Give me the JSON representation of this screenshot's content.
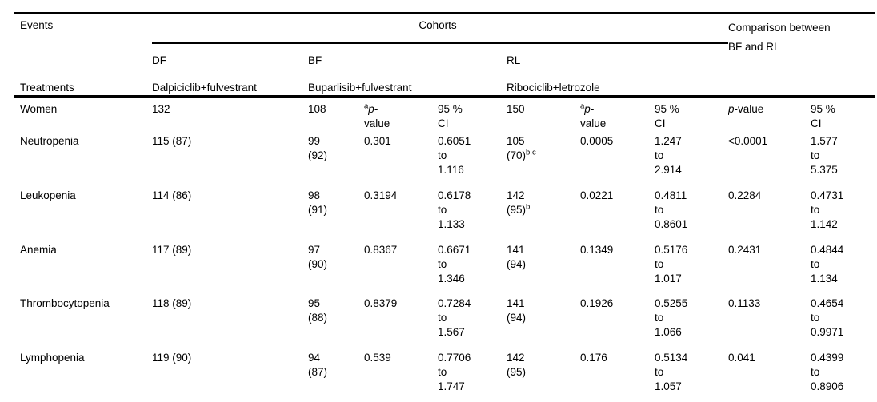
{
  "table": {
    "header": {
      "events": "Events",
      "treatments": "Treatments",
      "cohorts": "Cohorts",
      "comparison_html": "Comparison between<br>BF and RL",
      "groups": [
        {
          "abbr": "DF",
          "treatment": "Dalpiciclib+fulvestrant"
        },
        {
          "abbr": "BF",
          "treatment": "Buparlisib+fulvestrant"
        },
        {
          "abbr": "RL",
          "treatment": "Ribociclib+letrozole"
        }
      ]
    },
    "subheader_row": {
      "label": "Women",
      "cells": [
        "132",
        "108",
        "<sup>a</sup><i>p</i>-<br>value",
        "95 %<br>CI",
        "150",
        "<sup>a</sup><i>p</i>-<br>value",
        "95 %<br>CI",
        "<i>p</i>-value",
        "95 %<br>CI"
      ]
    },
    "rows": [
      {
        "label": "Neutropenia",
        "cells": [
          "115 (87)",
          "99<br>(92)",
          "0.301",
          "0.6051<br>to<br>1.116",
          "105<br>(70)<sup>b,c</sup>",
          "0.0005",
          "1.247<br>to<br>2.914",
          "&lt;0.0001",
          "1.577<br>to<br>5.375"
        ]
      },
      {
        "label": "Leukopenia",
        "cells": [
          "114 (86)",
          "98<br>(91)",
          "0.3194",
          "0.6178<br>to<br>1.133",
          "142<br>(95)<sup>b</sup>",
          "0.0221",
          "0.4811<br>to<br>0.8601",
          "0.2284",
          "0.4731<br>to<br>1.142"
        ]
      },
      {
        "label": "Anemia",
        "cells": [
          "117 (89)",
          "97<br>(90)",
          "0.8367",
          "0.6671<br>to<br>1.346",
          "141<br>(94)",
          "0.1349",
          "0.5176<br>to<br>1.017",
          "0.2431",
          "0.4844<br>to<br>1.134"
        ]
      },
      {
        "label": "Thrombocytopenia",
        "cells": [
          "118 (89)",
          "95<br>(88)",
          "0.8379",
          "0.7284<br>to<br>1.567",
          "141<br>(94)",
          "0.1926",
          "0.5255<br>to<br>1.066",
          "0.1133",
          "0.4654<br>to<br>0.9971"
        ]
      },
      {
        "label": "Lymphopenia",
        "cells": [
          "119 (90)",
          "94<br>(87)",
          "0.539",
          "0.7706<br>to<br>1.747",
          "142<br>(95)",
          "0.176",
          "0.5134<br>to<br>1.057",
          "0.041",
          "0.4399<br>to<br>0.8906"
        ]
      }
    ]
  }
}
